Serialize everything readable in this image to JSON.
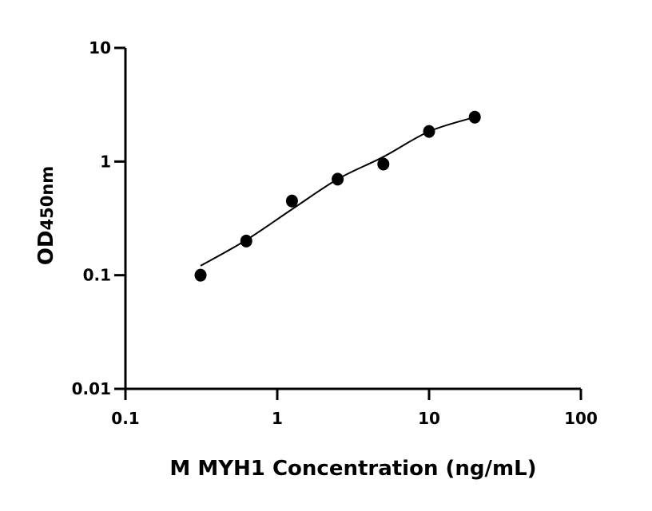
{
  "chart_data": {
    "type": "scatter",
    "title": "",
    "xlabel": "M MYH1 Concentration (ng/mL)",
    "ylabel_main": "OD",
    "ylabel_sub": "450nm",
    "xscale": "log",
    "yscale": "log",
    "xlim": [
      0.1,
      100
    ],
    "ylim": [
      0.01,
      10
    ],
    "xticks": [
      0.1,
      1,
      10,
      100
    ],
    "xtick_labels": [
      "0.1",
      "1",
      "10",
      "100"
    ],
    "yticks": [
      0.01,
      0.1,
      1,
      10
    ],
    "ytick_labels": [
      "0.01",
      "0.1",
      "1",
      "10"
    ],
    "grid": false,
    "points": {
      "x": [
        0.3125,
        0.625,
        1.25,
        2.5,
        5,
        10,
        20
      ],
      "y": [
        0.1,
        0.2,
        0.45,
        0.7,
        0.95,
        1.84,
        2.46
      ]
    },
    "fit_curve": {
      "x": [
        0.3125,
        0.625,
        1.25,
        2.5,
        5,
        10,
        20
      ],
      "y": [
        0.121,
        0.204,
        0.38,
        0.7,
        1.1,
        1.84,
        2.46
      ]
    },
    "colors": {
      "marker": "#000000",
      "line": "#000000"
    }
  }
}
